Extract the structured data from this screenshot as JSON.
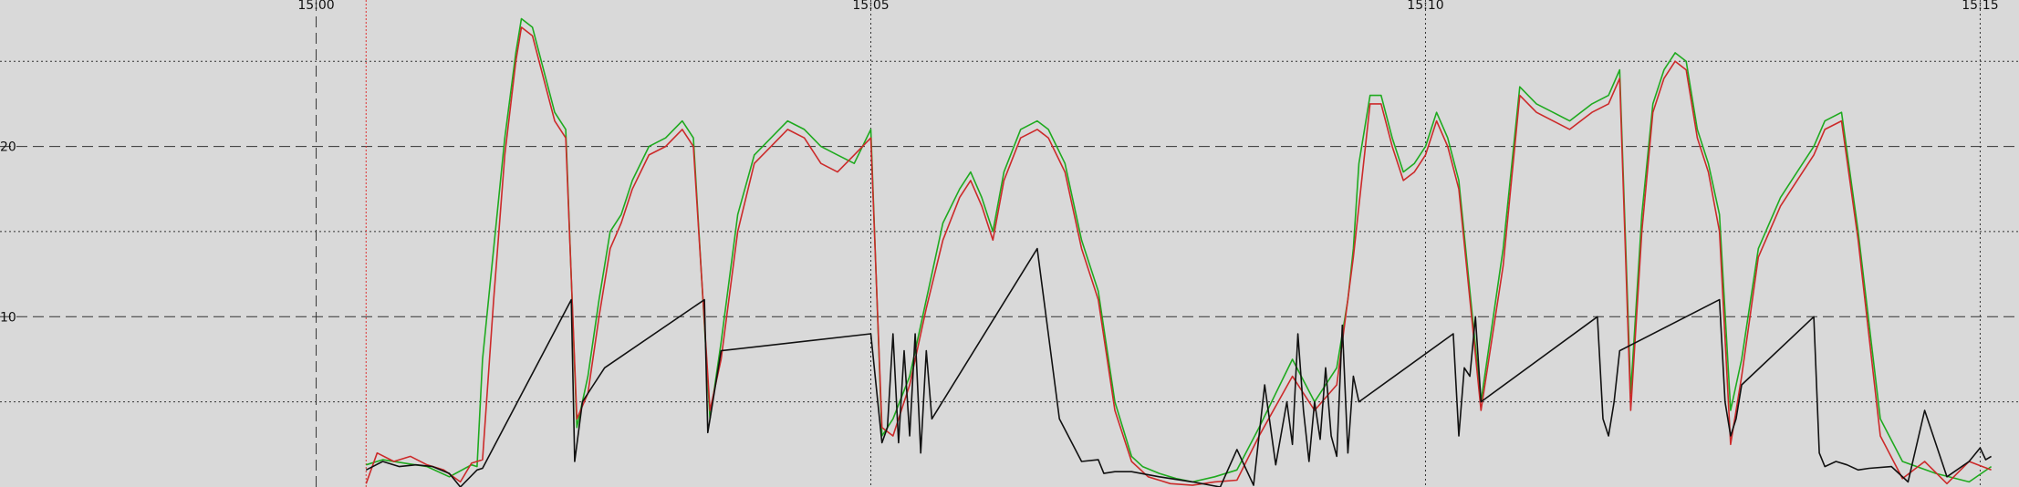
{
  "chart_data": {
    "type": "line",
    "title": "",
    "xlabel": "",
    "ylabel": "",
    "x_unit": "minutes_after_15:00",
    "xlim": [
      -2.85,
      15.35
    ],
    "ylim": [
      0,
      28.6
    ],
    "grid": true,
    "legend": "none",
    "x_ticks": [
      {
        "value": 0,
        "label": "15:00"
      },
      {
        "value": 5,
        "label": "15:05"
      },
      {
        "value": 10,
        "label": "15:10"
      },
      {
        "value": 15,
        "label": "15:15"
      }
    ],
    "y_ticks": [
      {
        "value": 10,
        "label": "10"
      },
      {
        "value": 20,
        "label": "20"
      }
    ],
    "y_minor_gridlines": [
      5,
      15,
      25
    ],
    "marker_line": {
      "x": 0.45,
      "color": "#e03030"
    },
    "colors": {
      "background": "#d9d9d9",
      "grid": "#333333",
      "red_series": "#cc2a2a",
      "green_series": "#1faa1f",
      "black_series": "#111111"
    },
    "series": [
      {
        "color": "#1faa1f",
        "x": [
          0.45,
          0.6,
          0.8,
          1.0,
          1.2,
          1.4,
          1.45,
          1.5,
          1.6,
          1.7,
          1.8,
          1.85,
          1.95,
          2.05,
          2.15,
          2.25,
          2.35,
          2.45,
          2.55,
          2.65,
          2.75,
          2.85,
          3.0,
          3.15,
          3.3,
          3.4,
          3.55,
          3.65,
          3.8,
          3.95,
          4.1,
          4.25,
          4.4,
          4.55,
          4.7,
          4.85,
          5.0,
          5.1,
          5.2,
          5.35,
          5.5,
          5.65,
          5.8,
          5.9,
          6.0,
          6.1,
          6.2,
          6.35,
          6.5,
          6.6,
          6.75,
          6.9,
          7.05,
          7.2,
          7.35,
          7.45,
          7.6,
          7.75,
          7.9,
          8.1,
          8.3,
          8.5,
          8.8,
          9.0,
          9.2,
          9.3,
          9.35,
          9.4,
          9.5,
          9.6,
          9.7,
          9.8,
          9.9,
          10.0,
          10.1,
          10.2,
          10.3,
          10.5,
          10.7,
          10.85,
          11.0,
          11.15,
          11.3,
          11.5,
          11.65,
          11.75,
          11.85,
          11.95,
          12.05,
          12.15,
          12.25,
          12.35,
          12.45,
          12.55,
          12.65,
          12.75,
          12.85,
          13.0,
          13.2,
          13.35,
          13.5,
          13.6,
          13.75,
          13.9,
          14.1,
          14.3,
          14.6,
          14.9,
          15.1
        ],
        "y": [
          1.3,
          1.6,
          1.4,
          1.2,
          0.6,
          1.3,
          1.2,
          7.5,
          14.0,
          20.5,
          25.5,
          27.5,
          27.0,
          24.5,
          22.0,
          21.0,
          3.5,
          6.5,
          11.0,
          15.0,
          16.0,
          18.0,
          20.0,
          20.5,
          21.5,
          20.5,
          4.0,
          8.5,
          16.0,
          19.5,
          20.5,
          21.5,
          21.0,
          20.0,
          19.5,
          19.0,
          21.0,
          3.0,
          4.0,
          6.5,
          11.0,
          15.5,
          17.5,
          18.5,
          17.0,
          15.0,
          18.5,
          21.0,
          21.5,
          21.0,
          19.0,
          14.5,
          11.5,
          5.0,
          1.8,
          1.2,
          0.8,
          0.5,
          0.3,
          0.6,
          1.0,
          3.5,
          7.5,
          5.0,
          7.0,
          11.0,
          14.0,
          19.0,
          23.0,
          23.0,
          20.5,
          18.5,
          19.0,
          20.0,
          22.0,
          20.5,
          18.0,
          5.0,
          14.0,
          23.5,
          22.5,
          22.0,
          21.5,
          22.5,
          23.0,
          24.5,
          5.5,
          16.0,
          22.5,
          24.5,
          25.5,
          25.0,
          21.0,
          19.0,
          16.0,
          4.5,
          7.5,
          14.0,
          17.0,
          18.5,
          20.0,
          21.5,
          22.0,
          15.0,
          4.0,
          1.5,
          0.8,
          0.3,
          1.2
        ]
      },
      {
        "color": "#cc2a2a",
        "x": [
          0.45,
          0.55,
          0.7,
          0.85,
          1.0,
          1.15,
          1.3,
          1.4,
          1.5,
          1.6,
          1.7,
          1.8,
          1.85,
          1.95,
          2.05,
          2.15,
          2.25,
          2.35,
          2.45,
          2.55,
          2.65,
          2.75,
          2.85,
          3.0,
          3.15,
          3.3,
          3.4,
          3.55,
          3.65,
          3.8,
          3.95,
          4.1,
          4.25,
          4.4,
          4.55,
          4.7,
          4.85,
          5.0,
          5.1,
          5.2,
          5.35,
          5.5,
          5.65,
          5.8,
          5.9,
          6.0,
          6.1,
          6.2,
          6.35,
          6.5,
          6.6,
          6.75,
          6.9,
          7.05,
          7.2,
          7.35,
          7.5,
          7.7,
          7.9,
          8.1,
          8.3,
          8.5,
          8.8,
          9.0,
          9.2,
          9.35,
          9.5,
          9.6,
          9.7,
          9.8,
          9.9,
          10.0,
          10.1,
          10.2,
          10.3,
          10.5,
          10.7,
          10.85,
          11.0,
          11.15,
          11.3,
          11.5,
          11.65,
          11.75,
          11.85,
          11.95,
          12.05,
          12.15,
          12.25,
          12.35,
          12.45,
          12.55,
          12.65,
          12.75,
          12.85,
          13.0,
          13.2,
          13.35,
          13.5,
          13.6,
          13.75,
          13.9,
          14.1,
          14.3,
          14.5,
          14.7,
          14.9,
          15.1
        ],
        "y": [
          0.2,
          2.0,
          1.5,
          1.8,
          1.3,
          1.0,
          0.3,
          1.4,
          1.6,
          11.0,
          19.5,
          25.0,
          27.0,
          26.5,
          24.0,
          21.5,
          20.5,
          4.0,
          5.5,
          10.0,
          14.0,
          15.5,
          17.5,
          19.5,
          20.0,
          21.0,
          20.0,
          4.5,
          7.5,
          15.0,
          19.0,
          20.0,
          21.0,
          20.5,
          19.0,
          18.5,
          19.5,
          20.5,
          3.5,
          3.0,
          6.0,
          10.5,
          14.5,
          17.0,
          18.0,
          16.5,
          14.5,
          18.0,
          20.5,
          21.0,
          20.5,
          18.5,
          14.0,
          11.0,
          4.5,
          1.5,
          0.6,
          0.2,
          0.1,
          0.3,
          0.4,
          3.0,
          6.5,
          4.5,
          6.0,
          13.5,
          22.5,
          22.5,
          20.0,
          18.0,
          18.5,
          19.5,
          21.5,
          20.0,
          17.5,
          4.5,
          13.0,
          23.0,
          22.0,
          21.5,
          21.0,
          22.0,
          22.5,
          24.0,
          4.5,
          15.0,
          22.0,
          24.0,
          25.0,
          24.5,
          20.5,
          18.5,
          15.0,
          2.5,
          6.5,
          13.5,
          16.5,
          18.0,
          19.5,
          21.0,
          21.5,
          14.5,
          3.0,
          0.5,
          1.5,
          0.2,
          1.5,
          1.0
        ]
      },
      {
        "color": "#111111",
        "x": [
          0.45,
          0.6,
          0.75,
          0.9,
          1.05,
          1.2,
          1.3,
          1.45,
          1.5,
          2.3,
          2.33,
          2.4,
          2.5,
          2.6,
          3.5,
          3.53,
          3.6,
          3.65,
          5.0,
          5.1,
          5.15,
          5.2,
          5.25,
          5.3,
          5.35,
          5.4,
          5.45,
          5.5,
          5.55,
          6.5,
          6.7,
          6.9,
          7.05,
          7.1,
          7.2,
          7.35,
          7.6,
          7.9,
          8.15,
          8.3,
          8.45,
          8.55,
          8.65,
          8.75,
          8.8,
          8.85,
          8.9,
          8.95,
          9.0,
          9.05,
          9.1,
          9.15,
          9.2,
          9.25,
          9.3,
          9.35,
          9.4,
          10.25,
          10.3,
          10.35,
          10.4,
          10.45,
          10.5,
          11.55,
          11.6,
          11.65,
          11.7,
          11.75,
          12.65,
          12.7,
          12.75,
          12.8,
          12.85,
          13.5,
          13.55,
          13.6,
          13.7,
          13.8,
          13.9,
          14.0,
          14.2,
          14.35,
          14.5,
          14.7,
          14.9,
          15.0,
          15.05,
          15.1
        ],
        "y": [
          1.0,
          1.5,
          1.2,
          1.3,
          1.2,
          0.8,
          0.0,
          1.0,
          1.1,
          11.0,
          1.5,
          5.0,
          6.0,
          7.0,
          11.0,
          3.2,
          6.0,
          8.0,
          9.0,
          2.6,
          3.5,
          9.0,
          2.6,
          8.0,
          3.0,
          9.0,
          2.0,
          8.0,
          4.0,
          14.0,
          4.0,
          1.5,
          1.6,
          0.8,
          0.9,
          0.9,
          0.6,
          0.3,
          0.0,
          2.2,
          0.1,
          6.0,
          1.3,
          5.0,
          2.5,
          9.0,
          4.5,
          1.5,
          5.0,
          2.8,
          7.0,
          3.0,
          1.8,
          9.5,
          2.0,
          6.5,
          5.0,
          9.0,
          3.0,
          7.0,
          6.5,
          10.0,
          5.0,
          10.0,
          4.0,
          3.0,
          5.0,
          8.0,
          11.0,
          5.0,
          3.0,
          4.0,
          6.0,
          10.0,
          2.0,
          1.2,
          1.5,
          1.3,
          1.0,
          1.1,
          1.2,
          0.3,
          4.5,
          0.6,
          1.5,
          2.3,
          1.6,
          1.8
        ]
      }
    ]
  }
}
